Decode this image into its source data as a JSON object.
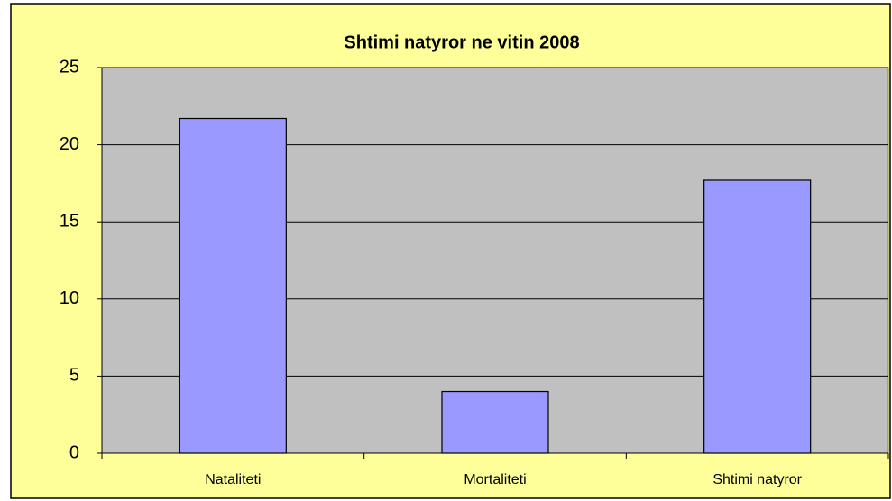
{
  "chart_data": {
    "type": "bar",
    "title": "Shtimi natyror ne vitin 2008",
    "categories": [
      "Nataliteti",
      "Mortaliteti",
      "Shtimi natyror"
    ],
    "values": [
      21.7,
      4.0,
      17.7
    ],
    "color": "#9999ff",
    "ylim": [
      0,
      25
    ],
    "yticks": [
      0,
      5,
      10,
      15,
      20,
      25
    ],
    "grid": true
  }
}
